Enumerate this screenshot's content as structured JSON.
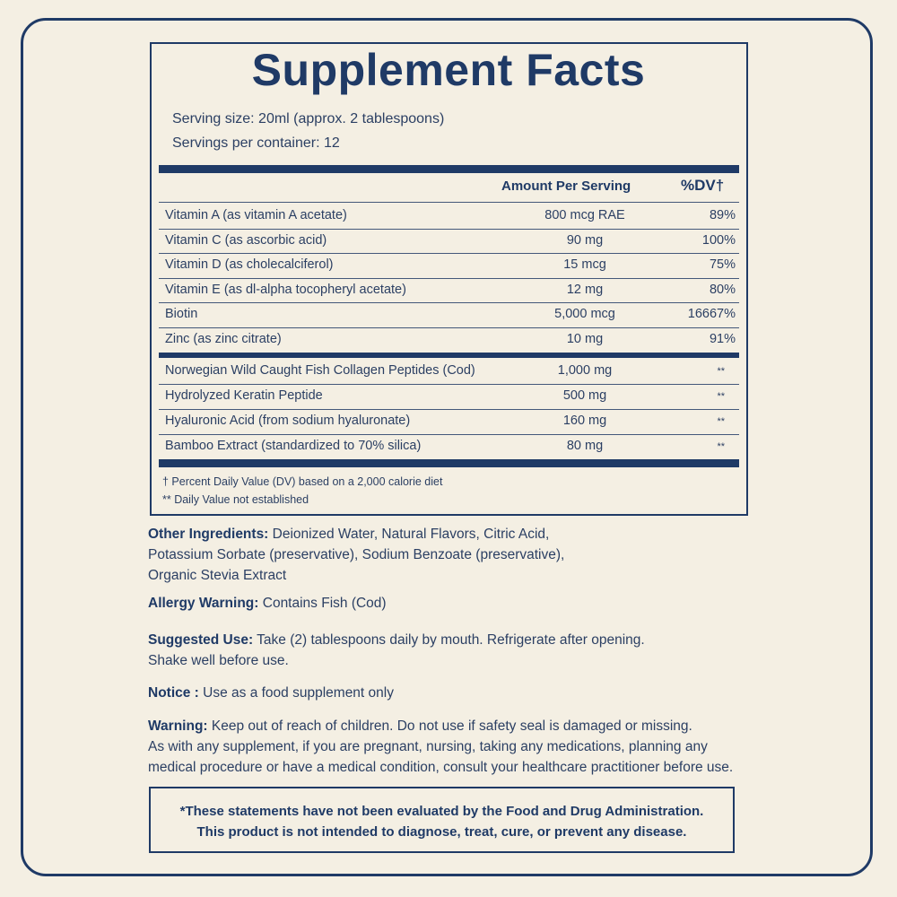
{
  "facts": {
    "title": "Supplement Facts",
    "serving_size": "Serving size: 20ml (approx. 2 tablespoons)",
    "servings_per_container": "Servings per container: 12",
    "col_amount": "Amount Per Serving",
    "col_dv": "%DV†",
    "vitamins": [
      {
        "name": "Vitamin A (as vitamin A acetate)",
        "amount": "800 mcg RAE",
        "dv": "89%"
      },
      {
        "name": "Vitamin C (as ascorbic acid)",
        "amount": "90 mg",
        "dv": "100%"
      },
      {
        "name": "Vitamin D (as cholecalciferol)",
        "amount": "15 mcg",
        "dv": "75%"
      },
      {
        "name": "Vitamin E (as dl-alpha tocopheryl acetate)",
        "amount": "12 mg",
        "dv": "80%"
      },
      {
        "name": "Biotin",
        "amount": "5,000 mcg",
        "dv": "16667%"
      },
      {
        "name": "Zinc (as zinc citrate)",
        "amount": "10 mg",
        "dv": "91%"
      }
    ],
    "other": [
      {
        "name": "Norwegian Wild Caught Fish Collagen Peptides (Cod)",
        "amount": "1,000 mg",
        "dv": "**"
      },
      {
        "name": "Hydrolyzed Keratin Peptide",
        "amount": "500 mg",
        "dv": "**"
      },
      {
        "name": "Hyaluronic Acid (from sodium hyaluronate)",
        "amount": "160 mg",
        "dv": "**"
      },
      {
        "name": "Bamboo Extract (standardized to 70% silica)",
        "amount": "80 mg",
        "dv": "**"
      }
    ],
    "footnote_dv": "† Percent Daily Value (DV) based on a 2,000 calorie diet",
    "footnote_na": "** Daily Value not established"
  },
  "other_ingredients": {
    "label": "Other Ingredients:",
    "text": "Deionized Water, Natural Flavors, Citric Acid,",
    "text2": "Potassium Sorbate (preservative), Sodium Benzoate (preservative),",
    "text3": "Organic Stevia Extract"
  },
  "allergy": {
    "label": "Allergy Warning:",
    "text": "Contains Fish (Cod)"
  },
  "suggested_use": {
    "label": "Suggested Use:",
    "text": "Take (2) tablespoons daily by mouth. Refrigerate after opening.",
    "text2": "Shake well before use."
  },
  "notice": {
    "label": "Notice :",
    "text": "Use as a food supplement only"
  },
  "warning": {
    "label": "Warning:",
    "text": "Keep out of reach of children. Do not use if safety seal is damaged or missing.",
    "text2": "As with any supplement, if you are pregnant, nursing, taking any medications, planning any",
    "text3": "medical procedure or have a medical condition, consult your healthcare practitioner before use."
  },
  "fda": {
    "line1": "*These statements have not been evaluated by the Food and Drug Administration.",
    "line2": "This product is not intended to diagnose, treat, cure, or prevent any disease."
  }
}
